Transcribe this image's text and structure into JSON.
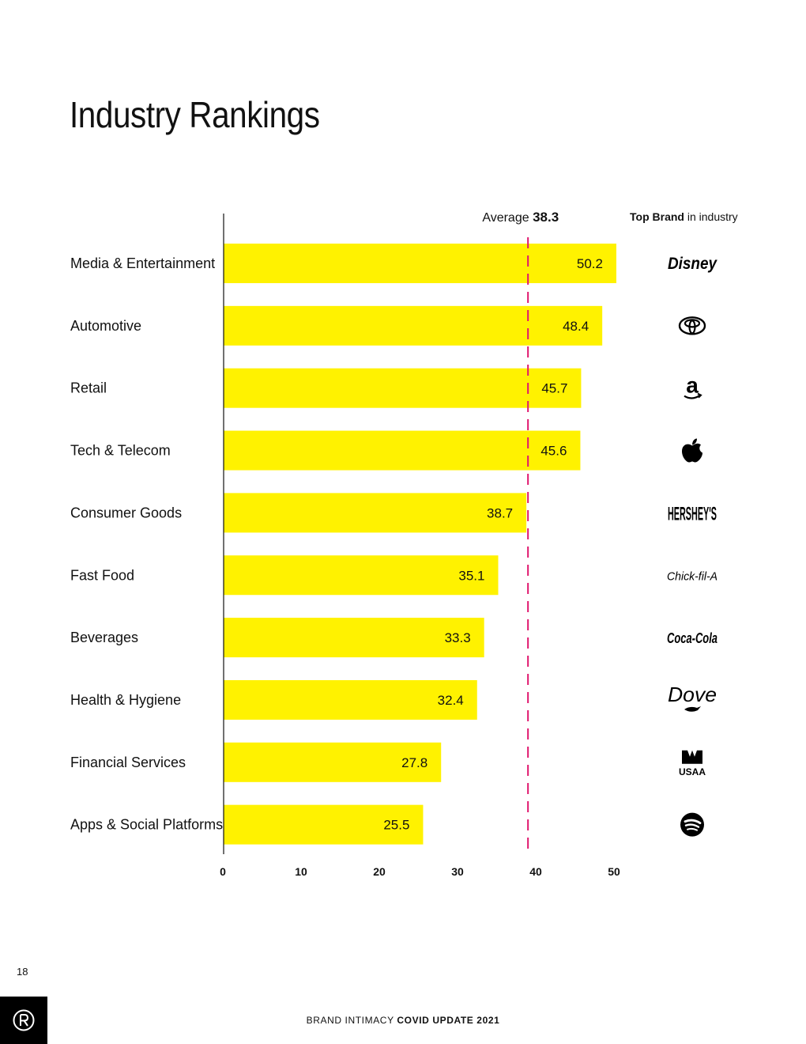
{
  "page": {
    "title": "Industry Rankings",
    "page_number": "18",
    "footer_light": "BRAND INTIMACY",
    "footer_bold": "COVID UPDATE 2021"
  },
  "colors": {
    "bar": "#FFF200",
    "average_line": "#E0176D",
    "axis": "#111111",
    "text": "#111111"
  },
  "chart_data": {
    "type": "bar",
    "orientation": "horizontal",
    "title": "Industry Rankings",
    "categories": [
      "Media & Entertainment",
      "Automotive",
      "Retail",
      "Tech & Telecom",
      "Consumer Goods",
      "Fast Food",
      "Beverages",
      "Health & Hygiene",
      "Financial Services",
      "Apps & Social Platforms"
    ],
    "values": [
      50.2,
      48.4,
      45.7,
      45.6,
      38.7,
      35.1,
      33.3,
      32.4,
      27.8,
      25.5
    ],
    "value_labels": [
      "50.2",
      "48.4",
      "45.7",
      "45.6",
      "38.7",
      "35.1",
      "33.3",
      "32.4",
      "27.8",
      "25.5"
    ],
    "xlim": [
      0,
      51
    ],
    "x_ticks": [
      0,
      10,
      20,
      30,
      40,
      50
    ],
    "x_tick_labels": [
      "0",
      "10",
      "20",
      "30",
      "40",
      "50"
    ],
    "average": {
      "label": "Average",
      "value": 38.3,
      "value_label": "38.3"
    },
    "top_brand_header": {
      "bold": "Top Brand",
      "rest": "in industry"
    },
    "top_brands": [
      {
        "brand": "Disney",
        "icon": "disney-logo"
      },
      {
        "brand": "Toyota",
        "icon": "toyota-logo"
      },
      {
        "brand": "a",
        "icon": "amazon-logo"
      },
      {
        "brand": "Apple",
        "icon": "apple-logo"
      },
      {
        "brand": "HERSHEY'S",
        "icon": "hersheys-logo"
      },
      {
        "brand": "Chick-fil-A",
        "icon": "chick-fil-a-logo"
      },
      {
        "brand": "Coca-Cola",
        "icon": "coca-cola-logo"
      },
      {
        "brand": "Dove",
        "icon": "dove-logo"
      },
      {
        "brand": "USAA",
        "icon": "usaa-logo"
      },
      {
        "brand": "Spotify",
        "icon": "spotify-logo"
      }
    ],
    "grid": false,
    "legend": "none"
  }
}
